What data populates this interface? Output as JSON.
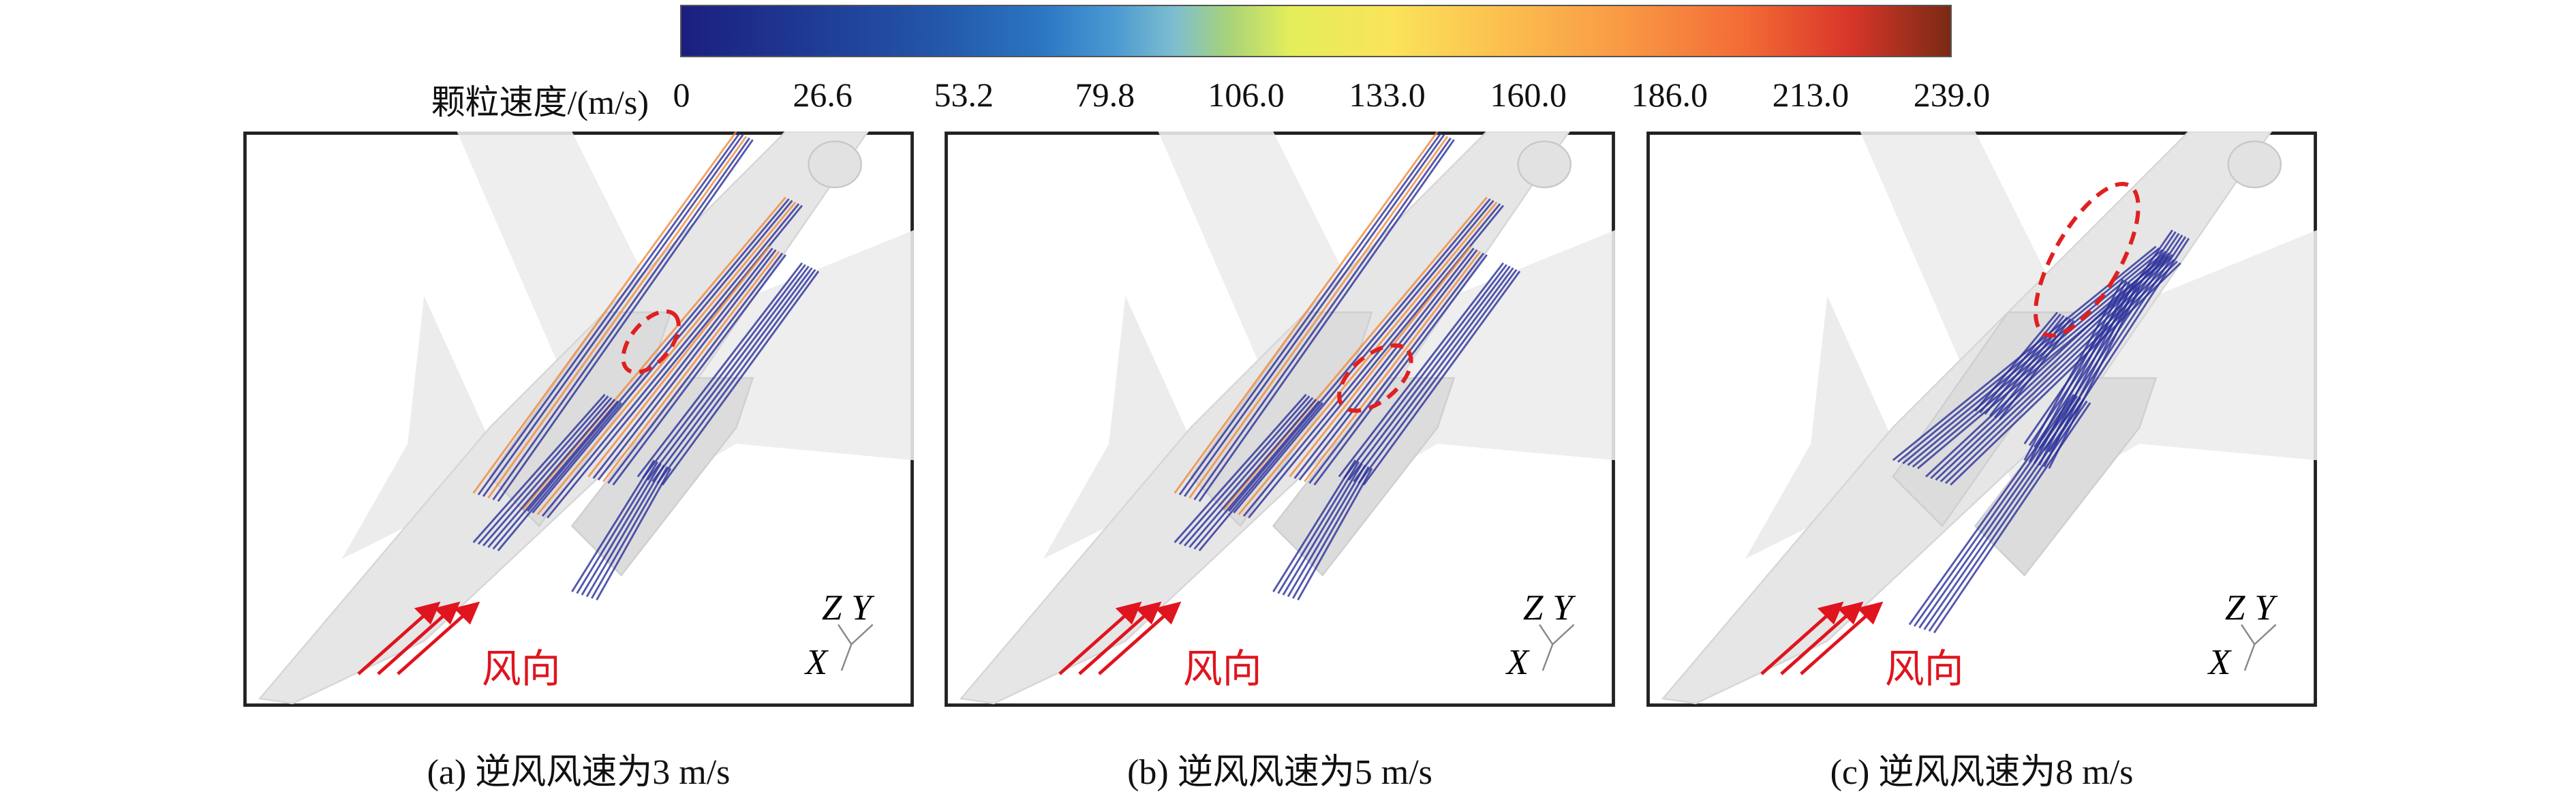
{
  "colorbar": {
    "label": "颗粒速度/(m/s)",
    "ticks": [
      "0",
      "26.6",
      "53.2",
      "79.8",
      "106.0",
      "133.0",
      "160.0",
      "186.0",
      "213.0",
      "239.0"
    ]
  },
  "panels": [
    {
      "caption": "(a) 逆风风速为3 m/s",
      "wind_label": "风向",
      "axes": [
        "Z",
        "Y",
        "X"
      ]
    },
    {
      "caption": "(b) 逆风风速为5 m/s",
      "wind_label": "风向",
      "axes": [
        "Z",
        "Y",
        "X"
      ]
    },
    {
      "caption": "(c) 逆风风速为8 m/s",
      "wind_label": "风向",
      "axes": [
        "Z",
        "Y",
        "X"
      ]
    }
  ]
}
